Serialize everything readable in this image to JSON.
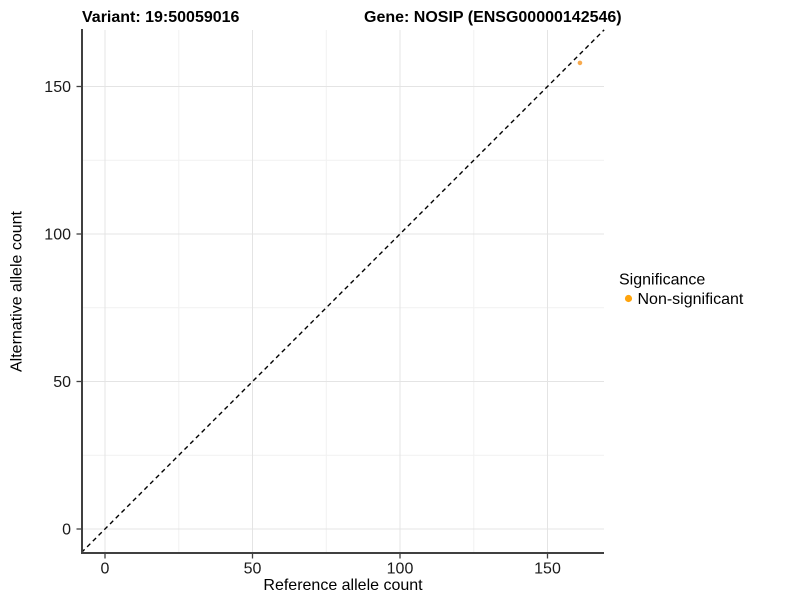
{
  "titles": {
    "variant": "Variant: 19:50059016",
    "gene": "Gene: NOSIP (ENSG00000142546)"
  },
  "axes": {
    "x": {
      "label": "Reference allele count",
      "ticks": [
        "0",
        "50",
        "100",
        "150"
      ]
    },
    "y": {
      "label": "Alternative allele count",
      "ticks": [
        "0",
        "50",
        "100",
        "150"
      ]
    }
  },
  "legend": {
    "title": "Significance",
    "items": [
      {
        "label": "Non-significant",
        "color": "#FFA40D"
      }
    ]
  },
  "colors": {
    "point_fill": "#F8A543",
    "grid_major": "#e4e4e4",
    "grid_minor": "#f1f1f1",
    "axis_line": "#404040",
    "identity_line": "#000000",
    "background": "#ffffff"
  },
  "chart_data": {
    "type": "scatter",
    "title": "Variant: 19:50059016 | Gene: NOSIP (ENSG00000142546)",
    "xlabel": "Reference allele count",
    "ylabel": "Alternative allele count",
    "xlim": [
      -8,
      169
    ],
    "ylim": [
      -8,
      169
    ],
    "x_ticks": [
      0,
      50,
      100,
      150
    ],
    "x_minor_ticks": [
      25,
      75,
      125
    ],
    "y_ticks": [
      0,
      50,
      100,
      150
    ],
    "y_minor_ticks": [
      25,
      75,
      125
    ],
    "grid": true,
    "legend_position": "right",
    "series": [
      {
        "name": "Non-significant",
        "color": "#F8A543",
        "points": [
          {
            "x": 161,
            "y": 158
          }
        ]
      }
    ],
    "reference_line": {
      "type": "identity",
      "style": "dashed",
      "color": "#000000",
      "from": [
        -8,
        -8
      ],
      "to": [
        169.2,
        169.2
      ]
    }
  }
}
